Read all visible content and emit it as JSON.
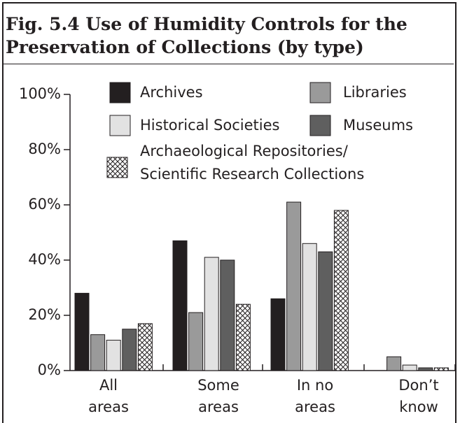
{
  "chart_data": {
    "type": "bar",
    "title": "Fig. 5.4 Use of Humidity Controls for the Preservation of Collections (by type)",
    "categories": [
      [
        "All",
        "areas"
      ],
      [
        "Some",
        "areas"
      ],
      [
        "In no",
        "areas"
      ],
      [
        "Don’t",
        "know"
      ]
    ],
    "series": [
      {
        "name": "Archives",
        "color": "#231f20",
        "values": [
          28,
          47,
          26,
          0
        ]
      },
      {
        "name": "Libraries",
        "color": "#9a9a9a",
        "values": [
          13,
          21,
          61,
          5
        ]
      },
      {
        "name": "Historical Societies",
        "color": "#e2e2e2",
        "values": [
          11,
          41,
          46,
          2
        ]
      },
      {
        "name": "Museums",
        "color": "#5f5f5f",
        "values": [
          15,
          40,
          43,
          1
        ]
      },
      {
        "name": "Archaeological Repositories/ Scientific Research Collections",
        "color": "#ffffff",
        "pattern": "crosshatch",
        "values": [
          17,
          24,
          58,
          1
        ]
      }
    ],
    "ylim": [
      0,
      100
    ],
    "yticks": [
      {
        "value": 0,
        "label": "0%"
      },
      {
        "value": 20,
        "label": "20%"
      },
      {
        "value": 40,
        "label": "40%"
      },
      {
        "value": 60,
        "label": "60%"
      },
      {
        "value": 80,
        "label": "80%"
      },
      {
        "value": 100,
        "label": "100%"
      }
    ]
  }
}
